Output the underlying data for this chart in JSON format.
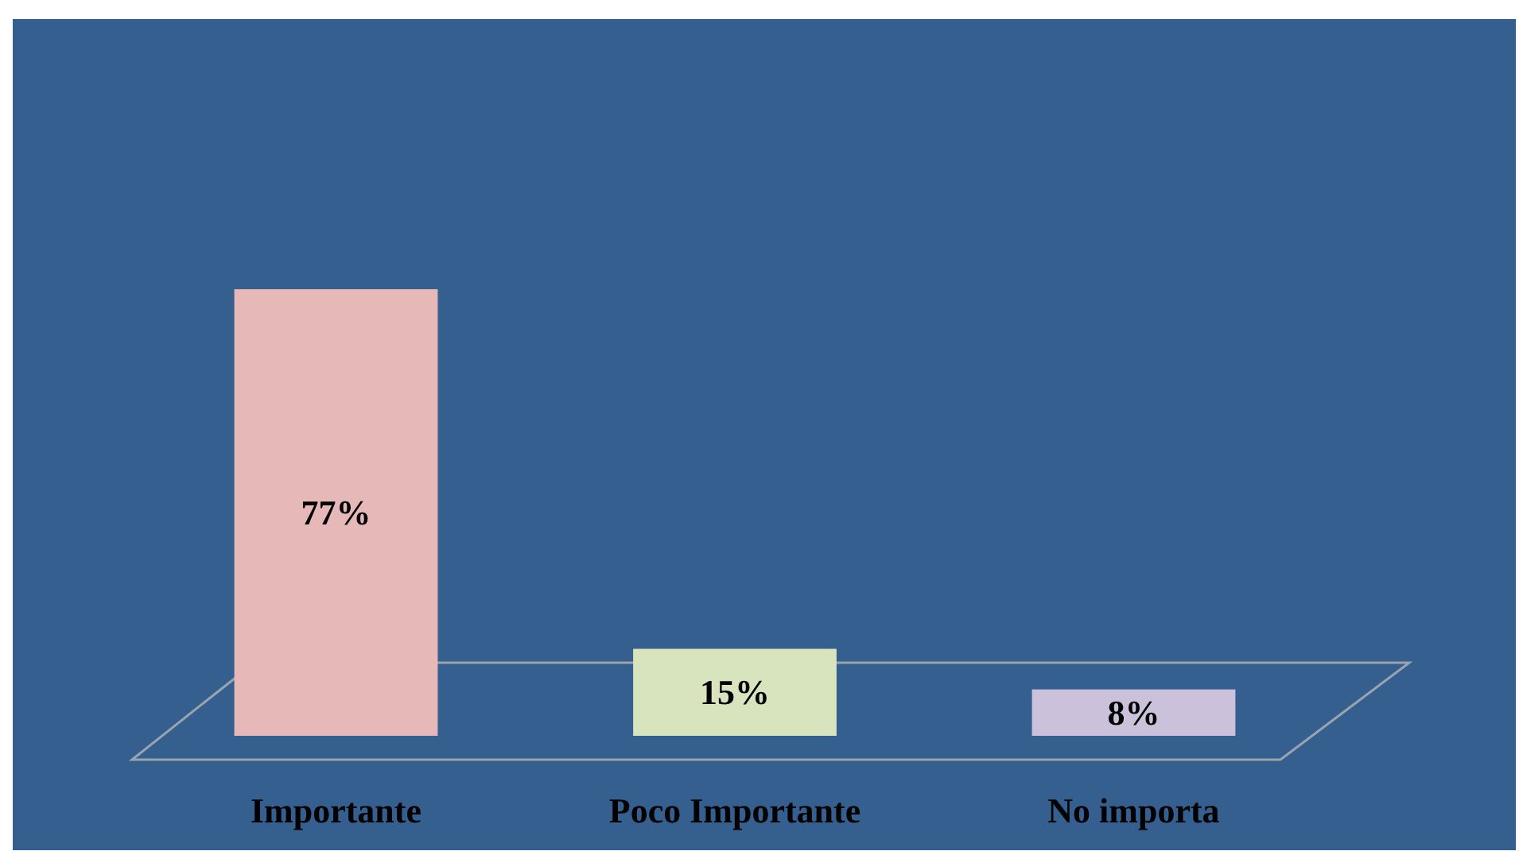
{
  "chart_data": {
    "type": "bar",
    "categories": [
      "Importante",
      "Poco Importante",
      "No importa"
    ],
    "values": [
      77,
      15,
      8
    ],
    "colors": [
      "#e6b9b8",
      "#d7e4bd",
      "#ccc1da"
    ],
    "value_labels": [
      "77%",
      "15%",
      "8%"
    ],
    "grid": false
  }
}
